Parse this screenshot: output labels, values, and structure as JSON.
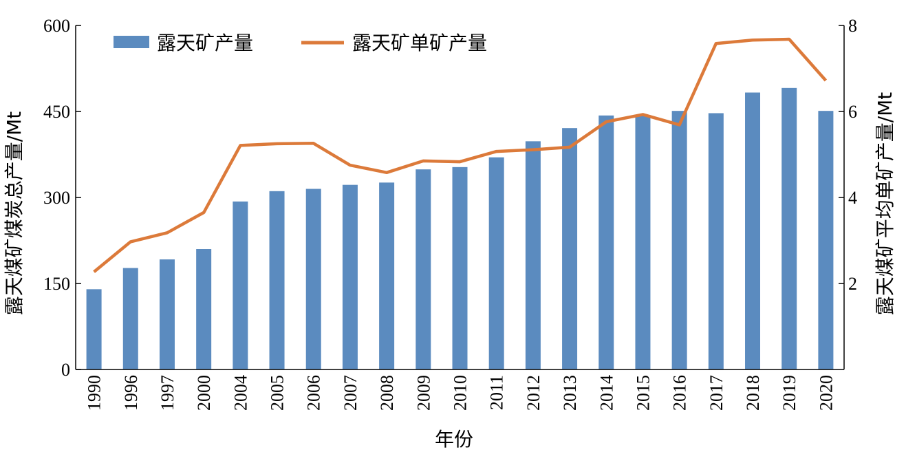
{
  "chart_data": {
    "type": "bar",
    "categories": [
      "1990",
      "1996",
      "1997",
      "2000",
      "2004",
      "2005",
      "2006",
      "2007",
      "2008",
      "2009",
      "2010",
      "2011",
      "2012",
      "2013",
      "2014",
      "2015",
      "2016",
      "2017",
      "2018",
      "2019",
      "2020"
    ],
    "series": [
      {
        "name": "露天矿产量",
        "type": "bar",
        "axis": "left",
        "color": "#5b8bbf",
        "values": [
          140,
          177,
          192,
          210,
          293,
          311,
          315,
          322,
          326,
          349,
          353,
          370,
          398,
          421,
          443,
          444,
          451,
          447,
          483,
          491,
          451
        ]
      },
      {
        "name": "露天矿单矿产量",
        "type": "line",
        "axis": "right",
        "color": "#dc7a3a",
        "values": [
          2.27,
          2.97,
          3.18,
          3.65,
          5.21,
          5.25,
          5.26,
          4.75,
          4.58,
          4.85,
          4.83,
          5.07,
          5.11,
          5.17,
          5.76,
          5.93,
          5.69,
          7.58,
          7.66,
          7.68,
          6.72
        ]
      }
    ],
    "xlabel": "年份",
    "ylabel": "露天煤矿煤炭总产量/Mt",
    "y2label": "露天煤矿平均单矿产量/Mt",
    "ylim": [
      0,
      600
    ],
    "yticks": [
      0,
      150,
      300,
      450,
      600
    ],
    "y2lim": [
      0,
      8
    ],
    "y2ticks": [
      2,
      4,
      6,
      8
    ],
    "legend_position": "top-left",
    "grid": false
  }
}
